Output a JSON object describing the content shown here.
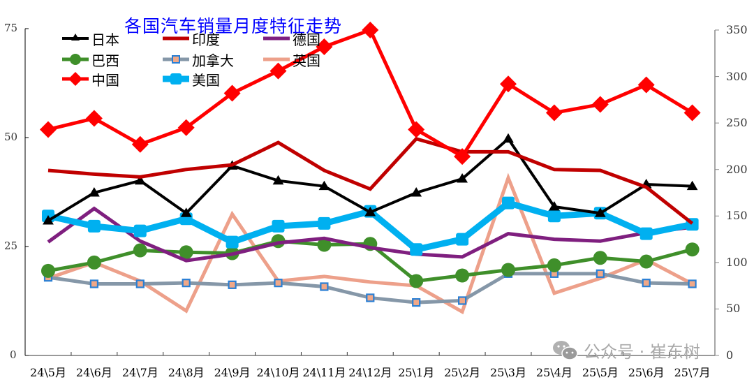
{
  "chart_data": {
    "type": "line",
    "title": "各国汽车销量月度特征走势",
    "xlabel": "",
    "ylabel_left": "",
    "ylabel_right": "",
    "categories": [
      "24\\5月",
      "24\\6月",
      "24\\7月",
      "24\\8月",
      "24\\9月",
      "24\\10月",
      "24\\11月",
      "24\\12月",
      "25\\1月",
      "25\\2月",
      "25\\3月",
      "25\\4月",
      "25\\5月",
      "25\\6月",
      "25\\7月"
    ],
    "left_axis": {
      "ylim": [
        0,
        75
      ],
      "ticks": [
        0,
        25,
        50,
        75
      ]
    },
    "right_axis": {
      "ylim": [
        0,
        350
      ],
      "ticks": [
        0,
        50,
        100,
        150,
        200,
        250,
        300,
        350
      ]
    },
    "grid": false,
    "legend_position": "top-left",
    "series": [
      {
        "name": "日本",
        "color": "#000000",
        "marker": "triangle",
        "axis": "right",
        "values": [
          145,
          175,
          188,
          153,
          204,
          188,
          182,
          154,
          175,
          190,
          233,
          160,
          153,
          184,
          182
        ]
      },
      {
        "name": "印度",
        "color": "#c00000",
        "marker": "dash",
        "axis": "right",
        "values": [
          199,
          195,
          192,
          200,
          205,
          229,
          199,
          179,
          233,
          219,
          219,
          200,
          199,
          181,
          142
        ]
      },
      {
        "name": "德国",
        "color": "#7f1f7f",
        "marker": "dash",
        "axis": "right",
        "values": [
          122,
          158,
          123,
          102,
          109,
          121,
          126,
          116,
          109,
          106,
          131,
          125,
          123,
          132,
          138
        ]
      },
      {
        "name": "巴西",
        "color": "#3f8f2a",
        "marker": "circle",
        "axis": "right",
        "values": [
          91,
          100,
          113,
          111,
          110,
          123,
          119,
          120,
          80,
          86,
          92,
          97,
          105,
          101,
          114
        ]
      },
      {
        "name": "加拿大",
        "color": "#8597a8",
        "marker": "square",
        "axis": "right",
        "values": [
          84,
          77,
          77,
          78,
          76,
          78,
          74,
          62,
          57,
          59,
          88,
          88,
          88,
          78,
          77
        ]
      },
      {
        "name": "英国",
        "color": "#eda08a",
        "marker": "dash",
        "axis": "right",
        "values": [
          83,
          100,
          80,
          48,
          152,
          80,
          85,
          79,
          75,
          47,
          191,
          67,
          83,
          103,
          77
        ]
      },
      {
        "name": "中国",
        "color": "#ff0000",
        "marker": "diamond",
        "axis": "right",
        "values": [
          243,
          255,
          227,
          245,
          282,
          306,
          332,
          350,
          243,
          214,
          292,
          261,
          270,
          291,
          261
        ]
      },
      {
        "name": "美国",
        "color": "#00b0f0",
        "marker": "square",
        "axis": "right",
        "values": [
          150,
          139,
          134,
          147,
          122,
          139,
          142,
          155,
          114,
          125,
          164,
          150,
          153,
          131,
          141
        ]
      }
    ]
  },
  "axes": {
    "left_ticks": [
      "0",
      "25",
      "50",
      "75"
    ],
    "right_ticks": [
      "0",
      "50",
      "100",
      "150",
      "200",
      "250",
      "300",
      "350"
    ]
  },
  "legend": [
    {
      "label": "日本",
      "color": "#000000",
      "marker": "triangle"
    },
    {
      "label": "印度",
      "color": "#c00000",
      "marker": "dash"
    },
    {
      "label": "德国",
      "color": "#7f1f7f",
      "marker": "dash"
    },
    {
      "label": "巴西",
      "color": "#3f8f2a",
      "marker": "circle"
    },
    {
      "label": "加拿大",
      "color": "#8597a8",
      "marker": "square"
    },
    {
      "label": "英国",
      "color": "#eda08a",
      "marker": "dash"
    },
    {
      "label": "中国",
      "color": "#ff0000",
      "marker": "diamond"
    },
    {
      "label": "美国",
      "color": "#00b0f0",
      "marker": "square"
    }
  ],
  "watermark": {
    "icon": "wechat-icon",
    "text": "公众号 · 崔东树"
  }
}
